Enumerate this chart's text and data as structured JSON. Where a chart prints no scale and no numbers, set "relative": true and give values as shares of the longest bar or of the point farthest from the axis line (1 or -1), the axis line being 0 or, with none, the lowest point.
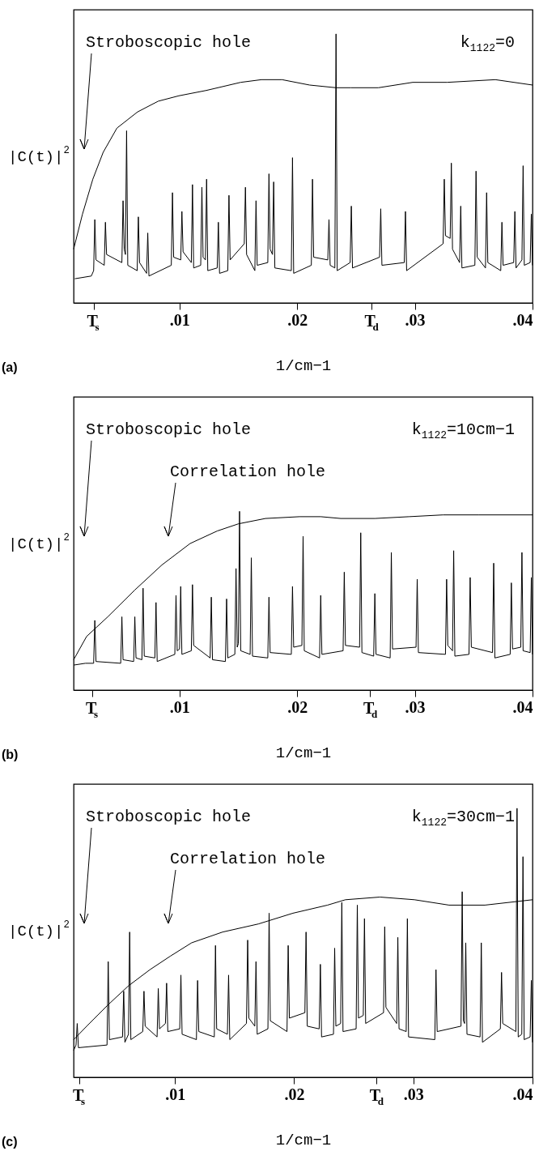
{
  "chart_data": [
    {
      "type": "line",
      "relative": true,
      "xlabel": "1/cm−1",
      "ylabel": "|C(t)|$^{2}$",
      "xlim": [
        0.001,
        0.04
      ],
      "xticks": [
        {
          "value": 0.0027,
          "label": "T$_{s}$"
        },
        {
          "value": 0.01,
          "label": ".01"
        },
        {
          "value": 0.02,
          "label": ".02"
        },
        {
          "value": 0.0263,
          "label": "T$_{d}$"
        },
        {
          "value": 0.03,
          "label": ".03"
        },
        {
          "value": 0.04,
          "label": ".04"
        }
      ],
      "annotations": [
        "Stroboscopic hole",
        "k$_{1122}$=0",
        "(a)"
      ],
      "series": [
        {
          "color": "#000000",
          "x": [
            0.0011,
            0.0025,
            0.0027,
            0.0028,
            0.0029,
            0.0036,
            0.0037,
            0.0038,
            0.0051,
            0.0052,
            0.0053,
            0.0054,
            0.0055,
            0.0056,
            0.0064,
            0.0065,
            0.0066,
            0.0072,
            0.0073,
            0.0074,
            0.0093,
            0.0094,
            0.0095,
            0.0101,
            0.0102,
            0.0103,
            0.011,
            0.0111,
            0.0112,
            0.0118,
            0.0119,
            0.012,
            0.0122,
            0.0123,
            0.0124,
            0.0132,
            0.0133,
            0.0134,
            0.0141,
            0.0142,
            0.0143,
            0.0155,
            0.0156,
            0.0157,
            0.0164,
            0.0165,
            0.0166,
            0.0175,
            0.0176,
            0.0177,
            0.0179,
            0.018,
            0.0181,
            0.0195,
            0.0196,
            0.0197,
            0.0212,
            0.0213,
            0.0214,
            0.0226,
            0.0227,
            0.0228,
            0.0232,
            0.0233,
            0.0234,
            0.0245,
            0.0246,
            0.0247,
            0.027,
            0.0271,
            0.0272,
            0.0291,
            0.0292,
            0.0293,
            0.0324,
            0.0325,
            0.0326,
            0.033,
            0.0331,
            0.0332,
            0.0338,
            0.0339,
            0.034,
            0.0351,
            0.0352,
            0.0353,
            0.036,
            0.0361,
            0.0362,
            0.0373,
            0.0374,
            0.0375,
            0.0384,
            0.0385,
            0.0386,
            0.0391,
            0.0392,
            0.0393,
            0.0398,
            0.0399,
            0.04
          ],
          "values": [
            0.09,
            0.1,
            0.12,
            0.31,
            0.16,
            0.14,
            0.3,
            0.18,
            0.15,
            0.38,
            0.2,
            0.18,
            0.64,
            0.14,
            0.12,
            0.32,
            0.15,
            0.11,
            0.26,
            0.1,
            0.14,
            0.41,
            0.17,
            0.16,
            0.34,
            0.19,
            0.15,
            0.44,
            0.13,
            0.14,
            0.43,
            0.17,
            0.16,
            0.46,
            0.12,
            0.13,
            0.3,
            0.11,
            0.12,
            0.4,
            0.16,
            0.22,
            0.43,
            0.18,
            0.12,
            0.38,
            0.14,
            0.15,
            0.48,
            0.2,
            0.18,
            0.45,
            0.13,
            0.12,
            0.54,
            0.11,
            0.14,
            0.46,
            0.17,
            0.16,
            0.31,
            0.14,
            0.13,
            1.0,
            0.12,
            0.15,
            0.36,
            0.13,
            0.17,
            0.35,
            0.14,
            0.15,
            0.34,
            0.12,
            0.22,
            0.46,
            0.25,
            0.24,
            0.52,
            0.2,
            0.15,
            0.36,
            0.13,
            0.14,
            0.49,
            0.17,
            0.13,
            0.41,
            0.15,
            0.12,
            0.3,
            0.14,
            0.15,
            0.34,
            0.13,
            0.16,
            0.51,
            0.14,
            0.15,
            0.33,
            0.14
          ]
        },
        {
          "color": "#000000",
          "x": [
            0.001,
            0.00175,
            0.00263,
            0.00351,
            0.00468,
            0.00643,
            0.00819,
            0.00994,
            0.01228,
            0.0152,
            0.01696,
            0.01871,
            0.02105,
            0.0233,
            0.02456,
            0.0269,
            0.02982,
            0.03275,
            0.03684,
            0.04
          ],
          "values": [
            0.2,
            0.33,
            0.46,
            0.56,
            0.65,
            0.71,
            0.75,
            0.77,
            0.79,
            0.82,
            0.83,
            0.83,
            0.81,
            0.8,
            0.8,
            0.8,
            0.82,
            0.82,
            0.83,
            0.81
          ]
        }
      ]
    },
    {
      "type": "line",
      "relative": true,
      "xlabel": "1/cm−1",
      "ylabel": "|C(t)|$^{2}$",
      "xlim": [
        0.001,
        0.04
      ],
      "xticks": [
        {
          "value": 0.0026,
          "label": "T$_{s}$"
        },
        {
          "value": 0.01,
          "label": ".01"
        },
        {
          "value": 0.02,
          "label": ".02"
        },
        {
          "value": 0.0262,
          "label": "T$_{d}$"
        },
        {
          "value": 0.03,
          "label": ".03"
        },
        {
          "value": 0.04,
          "label": ".04"
        }
      ],
      "annotations": [
        "Stroboscopic hole",
        "Correlation hole",
        "k$_{1122}$=10cm−1",
        "(b)"
      ],
      "series": [
        {
          "color": "#000000",
          "x": [
            0.001,
            0.002,
            0.0027,
            0.0028,
            0.0029,
            0.005,
            0.0051,
            0.0052,
            0.0061,
            0.0062,
            0.0063,
            0.0068,
            0.0069,
            0.007,
            0.0079,
            0.008,
            0.0081,
            0.0096,
            0.0097,
            0.0098,
            0.01,
            0.0101,
            0.0102,
            0.011,
            0.0111,
            0.0112,
            0.0126,
            0.0127,
            0.0128,
            0.0139,
            0.014,
            0.0141,
            0.0147,
            0.0148,
            0.0149,
            0.015,
            0.0151,
            0.0152,
            0.016,
            0.0161,
            0.0162,
            0.0175,
            0.0176,
            0.0177,
            0.0195,
            0.0196,
            0.0197,
            0.0204,
            0.0205,
            0.0206,
            0.0219,
            0.022,
            0.0221,
            0.0239,
            0.024,
            0.0241,
            0.0253,
            0.0254,
            0.0255,
            0.0265,
            0.0266,
            0.0267,
            0.0279,
            0.028,
            0.0281,
            0.0301,
            0.0302,
            0.0303,
            0.0326,
            0.0327,
            0.0328,
            0.0332,
            0.0333,
            0.0334,
            0.0346,
            0.0347,
            0.0348,
            0.0366,
            0.0367,
            0.0368,
            0.0381,
            0.0382,
            0.0383,
            0.039,
            0.0391,
            0.0392,
            0.0398,
            0.0399,
            0.04
          ],
          "values": [
            0.14,
            0.15,
            0.15,
            0.39,
            0.16,
            0.15,
            0.41,
            0.17,
            0.16,
            0.41,
            0.18,
            0.17,
            0.57,
            0.19,
            0.18,
            0.49,
            0.16,
            0.2,
            0.53,
            0.22,
            0.23,
            0.58,
            0.2,
            0.22,
            0.59,
            0.25,
            0.18,
            0.52,
            0.17,
            0.16,
            0.51,
            0.18,
            0.2,
            0.68,
            0.24,
            0.26,
            1.0,
            0.22,
            0.2,
            0.74,
            0.19,
            0.18,
            0.52,
            0.21,
            0.2,
            0.58,
            0.24,
            0.25,
            0.86,
            0.22,
            0.18,
            0.53,
            0.2,
            0.22,
            0.66,
            0.25,
            0.24,
            0.88,
            0.21,
            0.19,
            0.54,
            0.2,
            0.18,
            0.77,
            0.23,
            0.24,
            0.62,
            0.21,
            0.2,
            0.62,
            0.25,
            0.22,
            0.78,
            0.19,
            0.2,
            0.63,
            0.24,
            0.21,
            0.71,
            0.18,
            0.2,
            0.6,
            0.23,
            0.24,
            0.77,
            0.22,
            0.21,
            0.63,
            0.2
          ]
        },
        {
          "color": "#000000",
          "x": [
            0.001,
            0.0021,
            0.0039,
            0.0062,
            0.0085,
            0.0109,
            0.0132,
            0.015,
            0.0173,
            0.0202,
            0.022,
            0.0237,
            0.0266,
            0.0295,
            0.0324,
            0.0354,
            0.04
          ],
          "values": [
            0.17,
            0.3,
            0.41,
            0.56,
            0.7,
            0.82,
            0.89,
            0.93,
            0.96,
            0.97,
            0.97,
            0.96,
            0.96,
            0.97,
            0.98,
            0.98,
            0.98
          ]
        }
      ]
    },
    {
      "type": "line",
      "relative": true,
      "xlabel": "1/cm−1",
      "ylabel": "|C(t)|$^{2}$",
      "xlim": [
        0.0015,
        0.04
      ],
      "xticks": [
        {
          "value": 0.002,
          "label": "T$_{s}$"
        },
        {
          "value": 0.01,
          "label": ".01"
        },
        {
          "value": 0.02,
          "label": ".02"
        },
        {
          "value": 0.0269,
          "label": "T$_{d}$"
        },
        {
          "value": 0.03,
          "label": ".03"
        },
        {
          "value": 0.04,
          "label": ".04"
        }
      ],
      "annotations": [
        "Stroboscopic hole",
        "Correlation hole",
        "k$_{1122}$=30cm−1",
        "(c)"
      ],
      "series": [
        {
          "color": "#000000",
          "x": [
            0.0015,
            0.0017,
            0.0018,
            0.0019,
            0.0043,
            0.0044,
            0.0045,
            0.0056,
            0.0057,
            0.0058,
            0.0061,
            0.0062,
            0.0063,
            0.0073,
            0.0074,
            0.0075,
            0.0085,
            0.0086,
            0.0087,
            0.0092,
            0.0093,
            0.0094,
            0.0104,
            0.0105,
            0.0106,
            0.0118,
            0.0119,
            0.012,
            0.0133,
            0.0134,
            0.0135,
            0.0144,
            0.0145,
            0.0146,
            0.016,
            0.0161,
            0.0162,
            0.0167,
            0.0168,
            0.0169,
            0.0178,
            0.0179,
            0.018,
            0.0194,
            0.0195,
            0.0196,
            0.0209,
            0.021,
            0.0211,
            0.0221,
            0.0222,
            0.0223,
            0.0233,
            0.0234,
            0.0235,
            0.0239,
            0.024,
            0.0241,
            0.0252,
            0.0253,
            0.0254,
            0.0258,
            0.0259,
            0.026,
            0.0275,
            0.0276,
            0.0277,
            0.0286,
            0.0287,
            0.0288,
            0.0294,
            0.0295,
            0.0296,
            0.0318,
            0.0319,
            0.032,
            0.034,
            0.0341,
            0.0342,
            0.0343,
            0.0344,
            0.0345,
            0.0356,
            0.0357,
            0.0358,
            0.0373,
            0.0374,
            0.0375,
            0.0386,
            0.0387,
            0.0388,
            0.0391,
            0.0392,
            0.0393,
            0.0398,
            0.0399,
            0.04
          ],
          "values": [
            0.1,
            0.12,
            0.2,
            0.11,
            0.12,
            0.43,
            0.14,
            0.15,
            0.32,
            0.13,
            0.16,
            0.54,
            0.14,
            0.17,
            0.32,
            0.19,
            0.15,
            0.33,
            0.18,
            0.2,
            0.35,
            0.17,
            0.18,
            0.38,
            0.16,
            0.14,
            0.36,
            0.17,
            0.15,
            0.49,
            0.18,
            0.16,
            0.38,
            0.14,
            0.2,
            0.51,
            0.22,
            0.19,
            0.43,
            0.16,
            0.18,
            0.61,
            0.21,
            0.17,
            0.49,
            0.22,
            0.24,
            0.54,
            0.19,
            0.18,
            0.42,
            0.15,
            0.16,
            0.48,
            0.19,
            0.2,
            0.65,
            0.17,
            0.18,
            0.64,
            0.22,
            0.23,
            0.59,
            0.2,
            0.24,
            0.56,
            0.26,
            0.2,
            0.52,
            0.18,
            0.17,
            0.59,
            0.15,
            0.14,
            0.4,
            0.17,
            0.19,
            0.69,
            0.21,
            0.2,
            0.5,
            0.16,
            0.15,
            0.5,
            0.13,
            0.18,
            0.39,
            0.2,
            0.17,
            1.0,
            0.15,
            0.16,
            0.82,
            0.14,
            0.15,
            0.36,
            0.13
          ]
        },
        {
          "color": "#000000",
          "x": [
            0.0015,
            0.0026,
            0.0044,
            0.0061,
            0.0079,
            0.0096,
            0.0114,
            0.014,
            0.017,
            0.0199,
            0.0228,
            0.0243,
            0.0272,
            0.0301,
            0.033,
            0.036,
            0.04
          ],
          "values": [
            0.14,
            0.19,
            0.27,
            0.34,
            0.4,
            0.45,
            0.5,
            0.54,
            0.57,
            0.61,
            0.64,
            0.66,
            0.67,
            0.66,
            0.64,
            0.64,
            0.66
          ]
        }
      ]
    }
  ]
}
